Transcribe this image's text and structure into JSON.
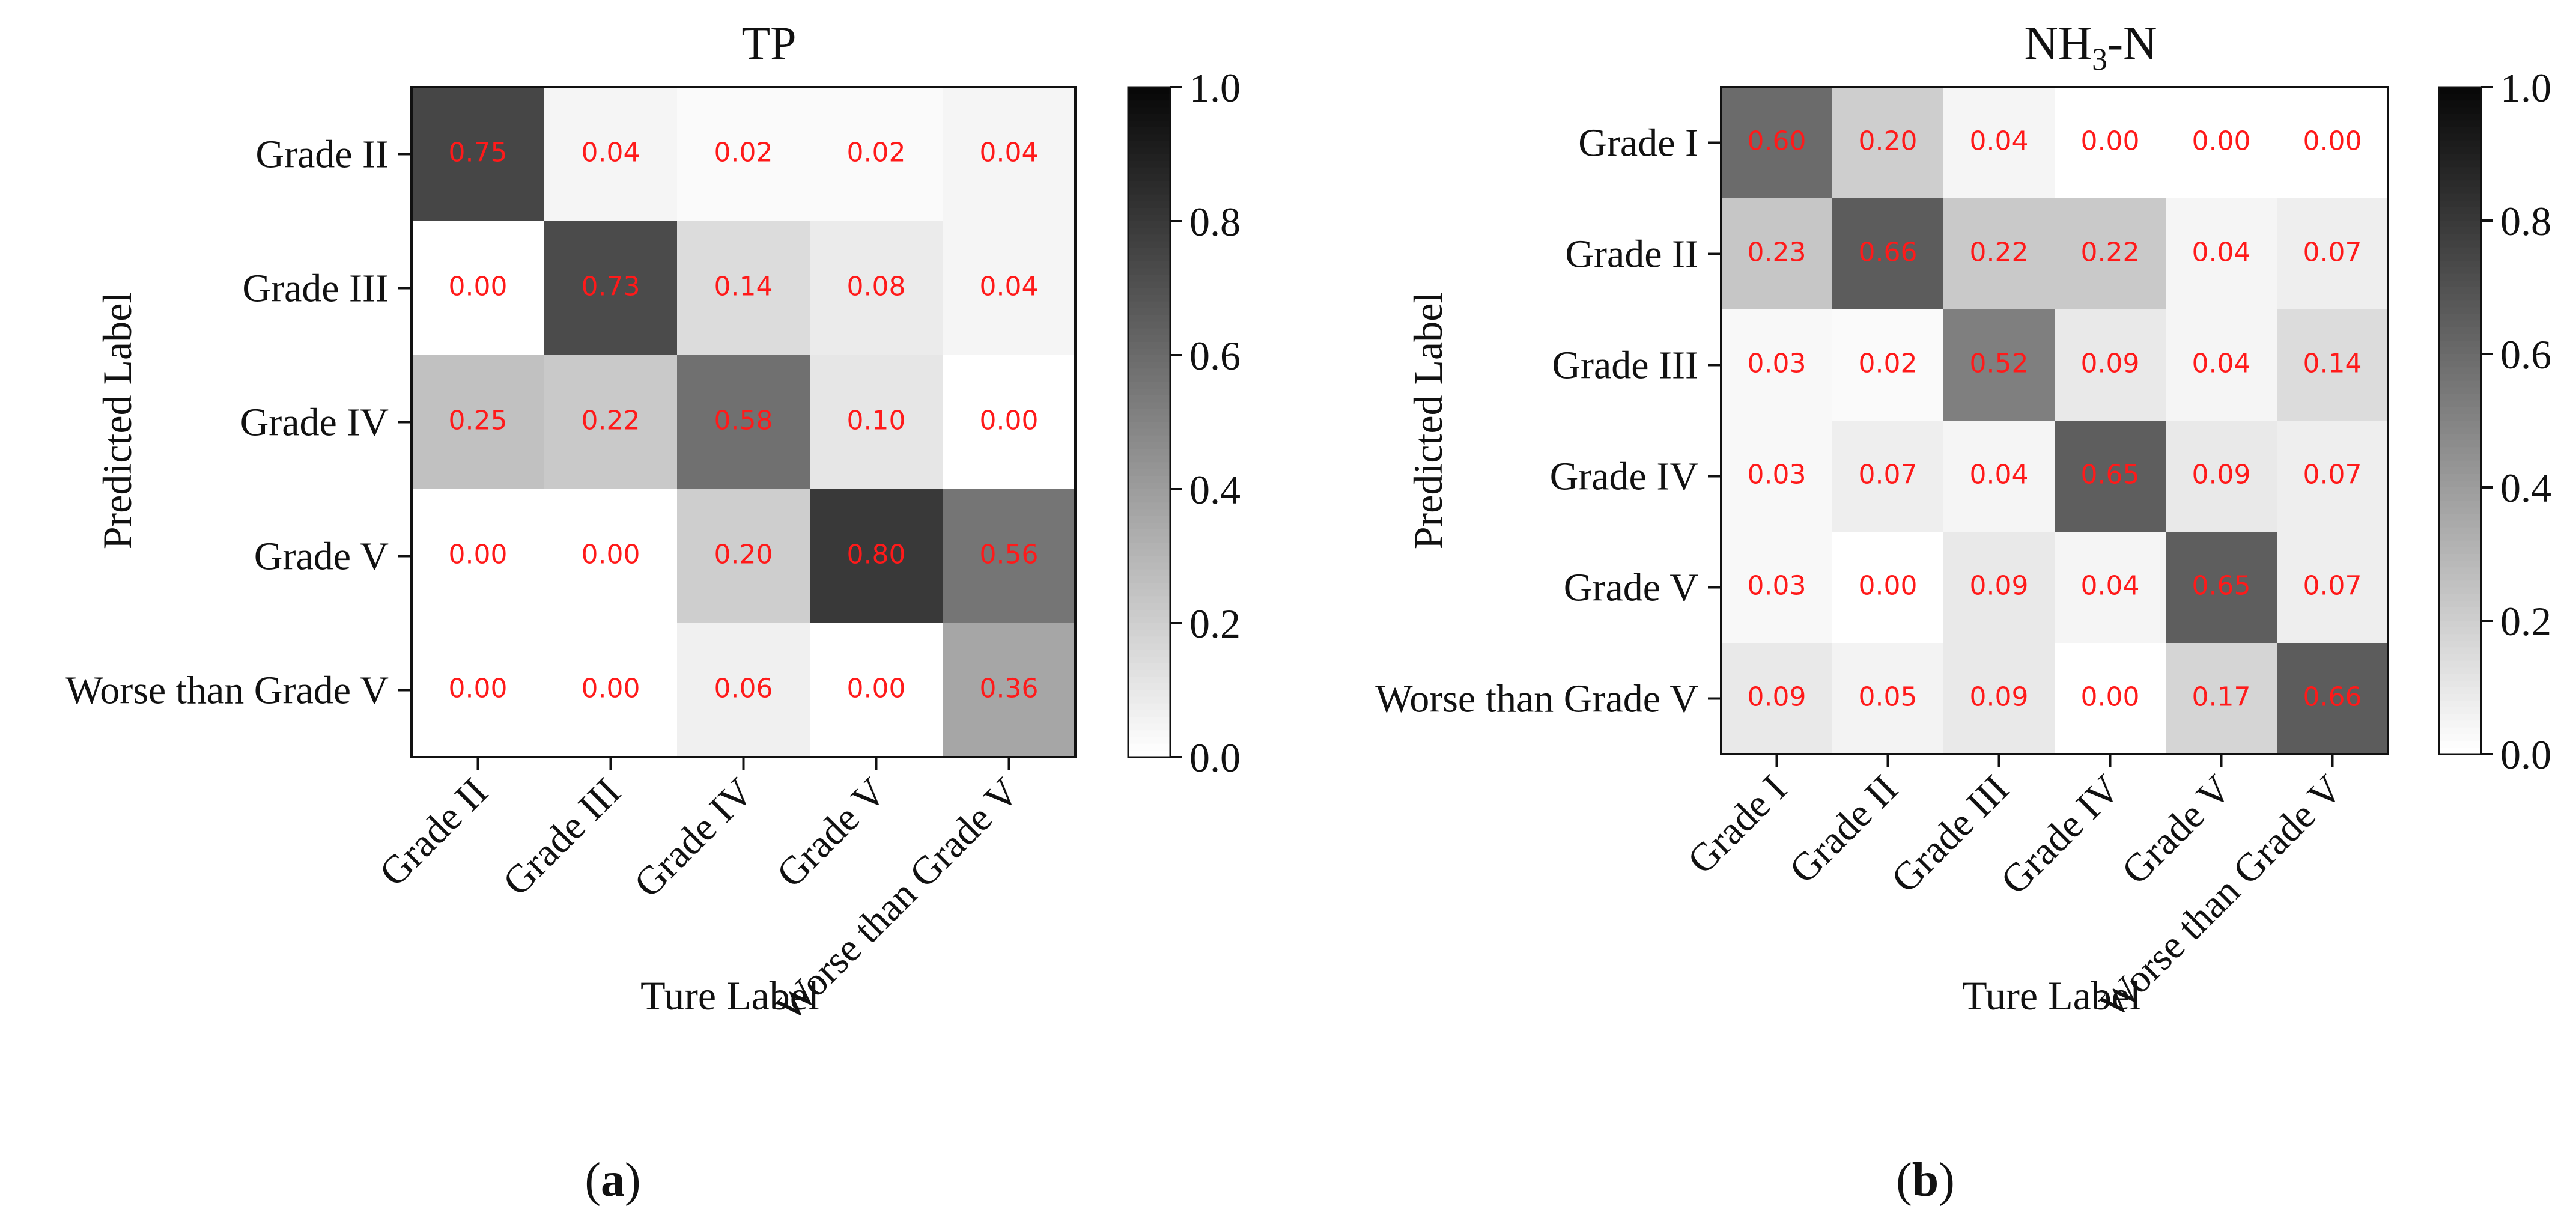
{
  "chart_data": [
    {
      "type": "heatmap",
      "panel_label": "a",
      "title": "TP",
      "title_sub": "",
      "title_suffix": "",
      "xlabel": "Ture Label",
      "ylabel": "Predicted Label",
      "x_categories": [
        "Grade II",
        "Grade III",
        "Grade IV",
        "Grade V",
        "Worse than Grade V"
      ],
      "y_categories": [
        "Grade II",
        "Grade III",
        "Grade IV",
        "Grade V",
        "Worse than Grade V"
      ],
      "values": [
        [
          0.75,
          0.04,
          0.02,
          0.02,
          0.04
        ],
        [
          0.0,
          0.73,
          0.14,
          0.08,
          0.04
        ],
        [
          0.25,
          0.22,
          0.58,
          0.1,
          0.0
        ],
        [
          0.0,
          0.0,
          0.2,
          0.8,
          0.56
        ],
        [
          0.0,
          0.0,
          0.06,
          0.0,
          0.36
        ]
      ],
      "colorbar_range": [
        0.0,
        1.0
      ],
      "colorbar_ticks": [
        "0.0",
        "0.2",
        "0.4",
        "0.6",
        "0.8",
        "1.0"
      ],
      "colormap": "Greys",
      "annotation_color": "#ff1a1a"
    },
    {
      "type": "heatmap",
      "panel_label": "b",
      "title": "NH",
      "title_sub": "3",
      "title_suffix": "-N",
      "xlabel": "Ture Label",
      "ylabel": "Predicted Label",
      "x_categories": [
        "Grade I",
        "Grade II",
        "Grade III",
        "Grade IV",
        "Grade V",
        "Worse than Grade V"
      ],
      "y_categories": [
        "Grade I",
        "Grade II",
        "Grade III",
        "Grade IV",
        "Grade V",
        "Worse than Grade V"
      ],
      "values": [
        [
          0.6,
          0.2,
          0.04,
          0.0,
          0.0,
          0.0
        ],
        [
          0.23,
          0.66,
          0.22,
          0.22,
          0.04,
          0.07
        ],
        [
          0.03,
          0.02,
          0.52,
          0.09,
          0.04,
          0.14
        ],
        [
          0.03,
          0.07,
          0.04,
          0.65,
          0.09,
          0.07
        ],
        [
          0.03,
          0.0,
          0.09,
          0.04,
          0.65,
          0.07
        ],
        [
          0.09,
          0.05,
          0.09,
          0.0,
          0.17,
          0.66
        ]
      ],
      "colorbar_range": [
        0.0,
        1.0
      ],
      "colorbar_ticks": [
        "0.0",
        "0.2",
        "0.4",
        "0.6",
        "0.8",
        "1.0"
      ],
      "colormap": "Greys",
      "annotation_color": "#ff1a1a"
    }
  ]
}
